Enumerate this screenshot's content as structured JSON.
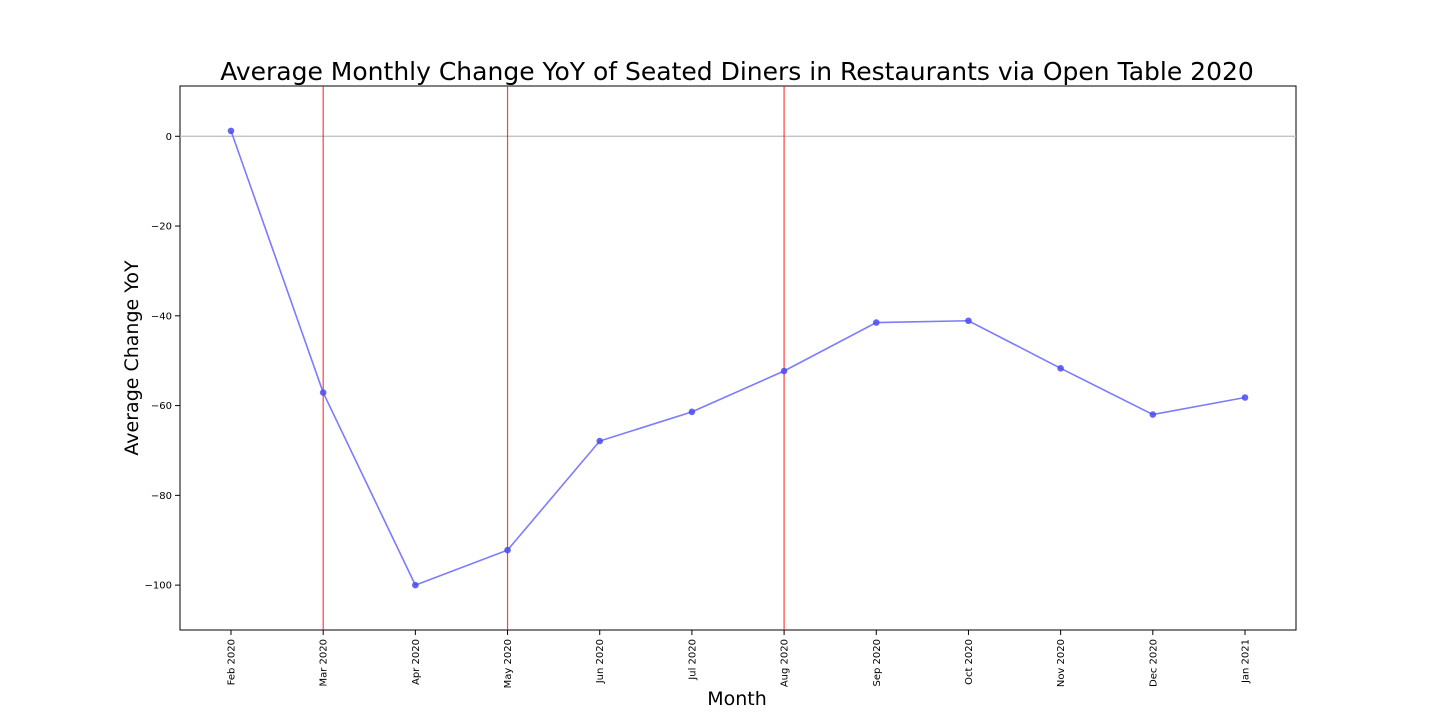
{
  "chart_data": {
    "type": "line",
    "title": "Average Monthly Change YoY of Seated Diners in Restaurants via Open Table 2020",
    "xlabel": "Month",
    "ylabel": "Average Change YoY",
    "categories": [
      "Feb 2020",
      "Mar 2020",
      "Apr 2020",
      "May 2020",
      "Jun 2020",
      "Jul 2020",
      "Aug 2020",
      "Sep 2020",
      "Oct 2020",
      "Nov 2020",
      "Dec 2020",
      "Jan 2021"
    ],
    "series": [
      {
        "values": [
          1.2,
          -57.1,
          -100.0,
          -92.2,
          -67.9,
          -61.4,
          -52.3,
          -41.5,
          -41.1,
          -51.7,
          -62.0,
          -58.2
        ],
        "color": "#7b7bff",
        "marker_color": "#4b4bf0"
      }
    ],
    "ylim": [
      -110,
      11.2
    ],
    "yticks": [
      0,
      -20,
      -40,
      -60,
      -80,
      -100
    ],
    "ytick_labels": [
      "0",
      "−20",
      "−40",
      "−60",
      "−80",
      "−100"
    ],
    "reference_hline": {
      "y": 0,
      "color": "#bbbbbb"
    },
    "reference_vlines": {
      "categories": [
        "Mar 2020",
        "May 2020",
        "Aug 2020"
      ],
      "color": "#ff0000"
    },
    "grid": false,
    "legend": "none"
  }
}
